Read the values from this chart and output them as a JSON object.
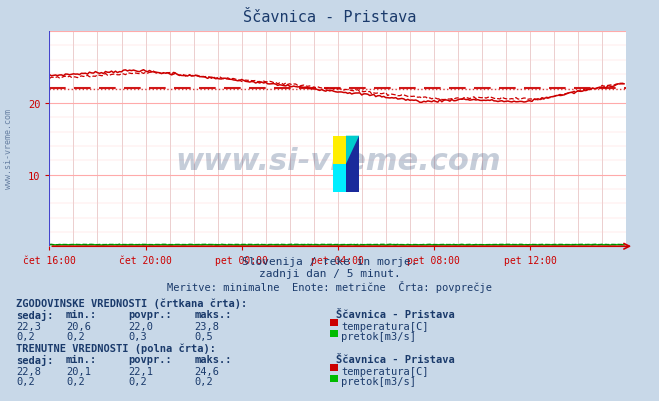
{
  "title": "Ščavnica - Pristava",
  "bg_color": "#c8d8e8",
  "plot_bg_color": "#ffffff",
  "xlim": [
    0,
    288
  ],
  "ylim": [
    0,
    30
  ],
  "xtick_labels": [
    "čet 16:00",
    "čet 20:00",
    "pet 00:00",
    "pet 04:00",
    "pet 08:00",
    "pet 12:00"
  ],
  "xtick_positions": [
    0,
    48,
    96,
    144,
    192,
    240
  ],
  "watermark_text": "www.si-vreme.com",
  "watermark_color": "#1a3a6b",
  "watermark_alpha": 0.25,
  "subtitle1": "Slovenija / reke in morje.",
  "subtitle2": "zadnji dan / 5 minut.",
  "subtitle3": "Meritve: minimalne  Enote: metrične  Črta: povprečje",
  "subtitle_color": "#1a3a6b",
  "temp_color": "#cc0000",
  "flow_color_solid": "#00bb00",
  "flow_color_dashed": "#008800",
  "avg_temp_solid": 22.1,
  "avg_temp_dashed": 22.0,
  "sidebar_text": "www.si-vreme.com",
  "sidebar_color": "#1a3a6b",
  "hist_header": "ZGODOVINSKE VREDNOSTI (črtkana črta):",
  "curr_header": "TRENUTNE VREDNOSTI (polna črta):",
  "col_headers": [
    "sedaj:",
    "min.:",
    "povpr.:",
    "maks.:"
  ],
  "station_name": "Ščavnica - Pristava",
  "hist_temp_vals": [
    "22,3",
    "20,6",
    "22,0",
    "23,8"
  ],
  "hist_flow_vals": [
    "0,2",
    "0,2",
    "0,3",
    "0,5"
  ],
  "curr_temp_vals": [
    "22,8",
    "20,1",
    "22,1",
    "24,6"
  ],
  "curr_flow_vals": [
    "0,2",
    "0,2",
    "0,2",
    "0,2"
  ],
  "label_temp": "temperatura[C]",
  "label_flow": "pretok[m3/s]",
  "legend_temp_color": "#cc0000",
  "legend_flow_color": "#00bb00"
}
